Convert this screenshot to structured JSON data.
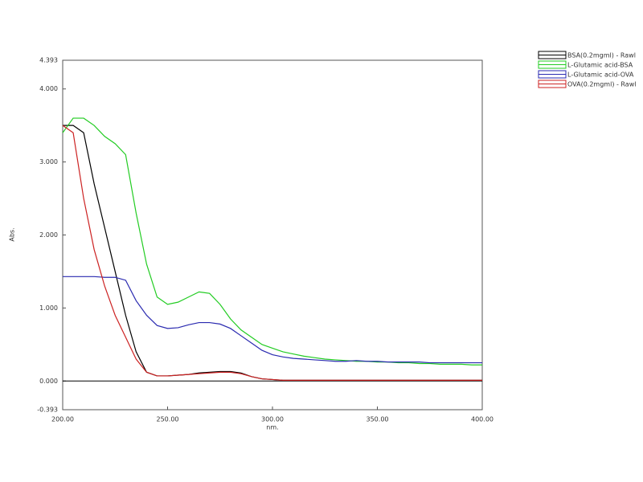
{
  "chart_data": {
    "type": "line",
    "x_label": "nm.",
    "y_label": "Abs.",
    "xlim": [
      200,
      400
    ],
    "xticks": [
      {
        "value": 200,
        "label": "200.00"
      },
      {
        "value": 250,
        "label": "250.00"
      },
      {
        "value": 300,
        "label": "300.00"
      },
      {
        "value": 350,
        "label": "350.00"
      },
      {
        "value": 400,
        "label": "400.00"
      }
    ],
    "ylim": [
      -0.393,
      4.393
    ],
    "yticks": [
      -0.393,
      {
        "value": 0,
        "label": "0.000"
      },
      {
        "value": 1,
        "label": "1.000"
      },
      {
        "value": 2,
        "label": "2.000"
      },
      {
        "value": 3,
        "label": "3.000"
      },
      {
        "value": 4,
        "label": "4.000"
      },
      4.393
    ],
    "legend": "upper right",
    "x": [
      200,
      205,
      210,
      215,
      220,
      225,
      230,
      235,
      240,
      245,
      250,
      255,
      260,
      265,
      270,
      275,
      280,
      285,
      290,
      295,
      300,
      305,
      310,
      315,
      320,
      325,
      330,
      335,
      340,
      345,
      350,
      355,
      360,
      365,
      370,
      375,
      380,
      385,
      390,
      395,
      400
    ],
    "series": [
      {
        "name": "BSA(0.2mgml) - Rawl",
        "color": "#000000",
        "values": [
          3.5,
          3.5,
          3.4,
          2.7,
          2.1,
          1.5,
          0.9,
          0.4,
          0.12,
          0.07,
          0.07,
          0.08,
          0.09,
          0.11,
          0.12,
          0.13,
          0.13,
          0.11,
          0.06,
          0.03,
          0.02,
          0.01,
          0.01,
          0.01,
          0.01,
          0.01,
          0.01,
          0.01,
          0.01,
          0.01,
          0.01,
          0.01,
          0.01,
          0.01,
          0.01,
          0.01,
          0.01,
          0.01,
          0.01,
          0.01,
          0.01
        ]
      },
      {
        "name": "L-Glutamic acid-BSA",
        "color": "#22cc22",
        "values": [
          3.4,
          3.6,
          3.6,
          3.5,
          3.35,
          3.25,
          3.1,
          2.3,
          1.6,
          1.15,
          1.05,
          1.08,
          1.15,
          1.22,
          1.2,
          1.05,
          0.85,
          0.7,
          0.6,
          0.5,
          0.45,
          0.4,
          0.37,
          0.34,
          0.32,
          0.3,
          0.29,
          0.28,
          0.27,
          0.27,
          0.26,
          0.26,
          0.25,
          0.25,
          0.24,
          0.24,
          0.23,
          0.23,
          0.23,
          0.22,
          0.22
        ]
      },
      {
        "name": "L-Glutamic acid-OVA",
        "color": "#2a2ab0",
        "values": [
          1.43,
          1.43,
          1.43,
          1.43,
          1.42,
          1.42,
          1.38,
          1.1,
          0.9,
          0.76,
          0.72,
          0.73,
          0.77,
          0.8,
          0.8,
          0.78,
          0.72,
          0.62,
          0.52,
          0.42,
          0.36,
          0.33,
          0.31,
          0.3,
          0.29,
          0.28,
          0.27,
          0.27,
          0.28,
          0.27,
          0.27,
          0.26,
          0.26,
          0.26,
          0.26,
          0.25,
          0.25,
          0.25,
          0.25,
          0.25,
          0.25
        ]
      },
      {
        "name": "OVA(0.2mgml) - Rawl",
        "color": "#cc2222",
        "values": [
          3.5,
          3.4,
          2.5,
          1.8,
          1.3,
          0.9,
          0.6,
          0.3,
          0.12,
          0.07,
          0.07,
          0.08,
          0.09,
          0.1,
          0.11,
          0.12,
          0.12,
          0.1,
          0.06,
          0.03,
          0.02,
          0.01,
          0.01,
          0.01,
          0.01,
          0.01,
          0.01,
          0.01,
          0.01,
          0.01,
          0.01,
          0.01,
          0.01,
          0.01,
          0.01,
          0.01,
          0.01,
          0.01,
          0.01,
          0.01,
          0.01
        ]
      }
    ]
  }
}
